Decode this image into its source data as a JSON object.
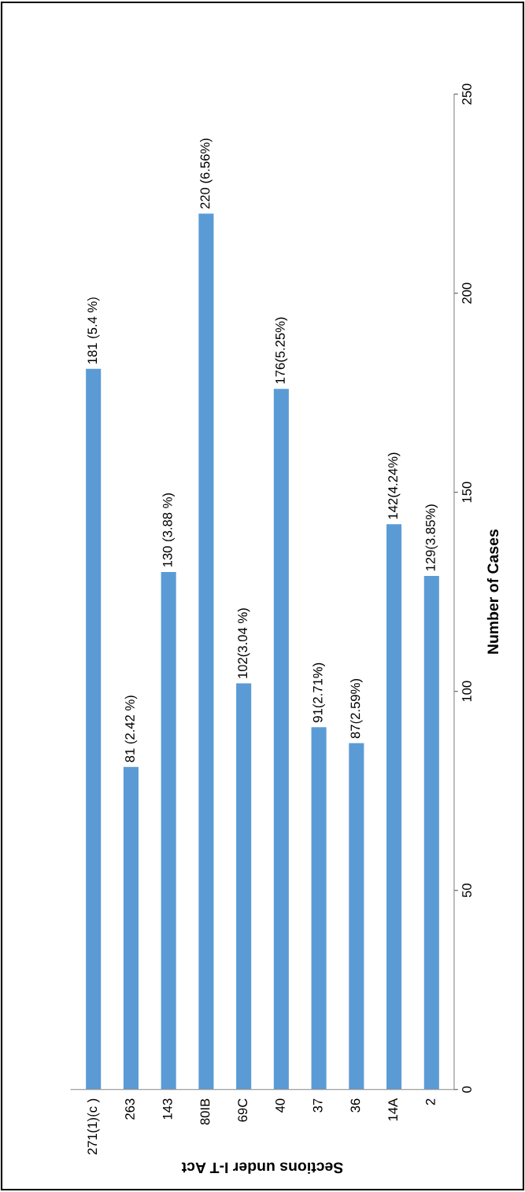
{
  "chart_data": {
    "type": "bar",
    "xlabel": "Sections under I-T Act",
    "ylabel": "Number of Cases",
    "categories": [
      "271(1)(c )",
      "263",
      "143",
      "80IB",
      "69C",
      "40",
      "37",
      "36",
      "14A",
      "2"
    ],
    "values": [
      181,
      81,
      130,
      220,
      102,
      176,
      91,
      87,
      142,
      129
    ],
    "value_labels": [
      "181 (5.4 %)",
      "81 (2.42 %)",
      "130 (3.88 %)",
      "220 (6.56%)",
      "102(3.04 %)",
      "176(5.25%)",
      "91(2.71%)",
      "87(2.59%)",
      "142(4.24%)",
      "129(3.85%)"
    ],
    "color": "#5b9bd5",
    "ylim": [
      0,
      250
    ],
    "yticks": [
      0,
      50,
      100,
      150,
      200,
      250
    ],
    "grid": false,
    "legend": false
  }
}
